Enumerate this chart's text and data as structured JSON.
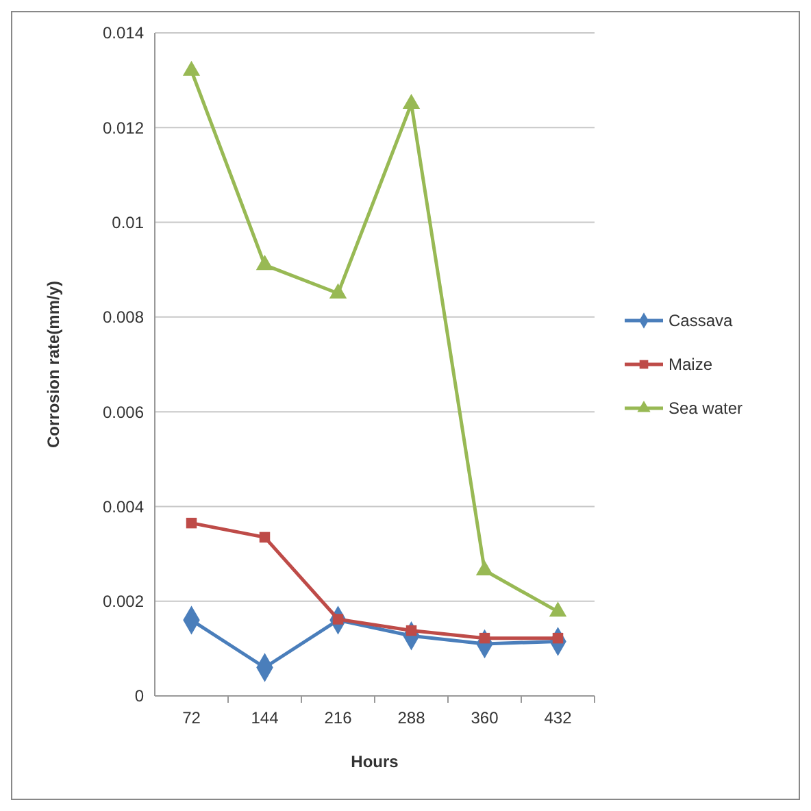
{
  "chart_data": {
    "type": "line",
    "xlabel": "Hours",
    "ylabel": "Corrosion rate(mm/y)",
    "categories": [
      "72",
      "144",
      "216",
      "288",
      "360",
      "432"
    ],
    "ylim": [
      0,
      0.014
    ],
    "yticks": [
      0,
      0.002,
      0.004,
      0.006,
      0.008,
      0.01,
      0.012,
      0.014
    ],
    "grid": "y",
    "legend": "right",
    "series": [
      {
        "name": "Cassava",
        "color": "#4a7ebb",
        "marker": "diamond",
        "values": [
          0.0016,
          0.0006,
          0.0016,
          0.00127,
          0.0011,
          0.00115
        ]
      },
      {
        "name": "Maize",
        "color": "#be4b48",
        "marker": "square",
        "values": [
          0.00365,
          0.00335,
          0.00162,
          0.00138,
          0.00122,
          0.00122
        ]
      },
      {
        "name": "Sea water",
        "color": "#98b954",
        "marker": "triangle",
        "values": [
          0.0132,
          0.0091,
          0.0085,
          0.0125,
          0.00265,
          0.00178
        ]
      }
    ]
  }
}
